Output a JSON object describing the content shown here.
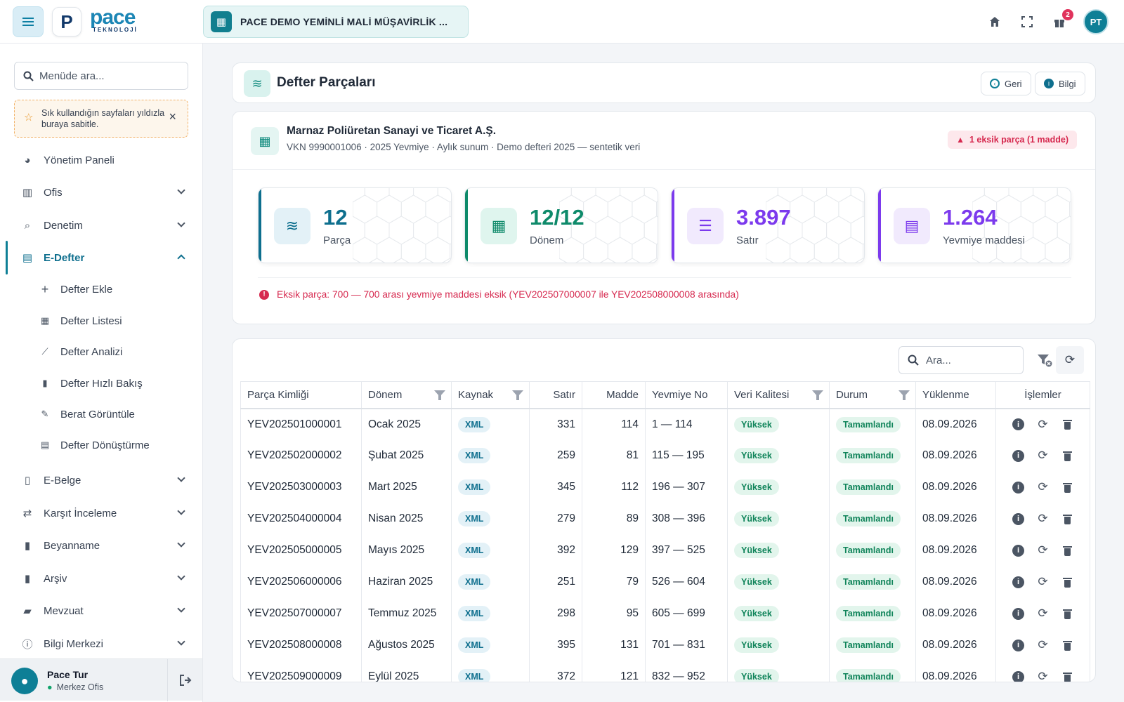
{
  "topbar": {
    "logo_letter": "P",
    "logo_name": "pace",
    "logo_sub": "TEKNOLOJİ",
    "firm_name": "PACE DEMO YEMİNLİ MALİ MÜŞAVİRLİK ...",
    "notification_count": "2",
    "user_initials": "PT",
    "icons": [
      "home-icon",
      "fullscreen-icon",
      "gift-icon"
    ]
  },
  "sidebar": {
    "search_placeholder": "Menüde ara...",
    "fav_hint": "Sık kullandığın sayfaları yıldızla buraya sabitle.",
    "items": [
      {
        "label": "Yönetim Paneli",
        "icon": "dashboard-icon"
      },
      {
        "label": "Ofis",
        "icon": "building-icon"
      },
      {
        "label": "Denetim",
        "icon": "audit-search-icon"
      },
      {
        "label": "E-Defter",
        "icon": "book-icon"
      },
      {
        "label": "E-Belge",
        "icon": "document-icon"
      },
      {
        "label": "Karşıt İnceleme",
        "icon": "swap-icon"
      },
      {
        "label": "Beyanname",
        "icon": "file-icon"
      },
      {
        "label": "Arşiv",
        "icon": "archive-icon"
      },
      {
        "label": "Mevzuat",
        "icon": "folder-icon"
      },
      {
        "label": "Bilgi Merkezi",
        "icon": "info-icon"
      }
    ],
    "sub_items": [
      {
        "label": "Defter Ekle",
        "icon": "plus-icon"
      },
      {
        "label": "Defter Listesi",
        "icon": "table-icon"
      },
      {
        "label": "Defter Analizi",
        "icon": "chart-line-icon"
      },
      {
        "label": "Defter Hızlı Bakış",
        "icon": "file-icon"
      },
      {
        "label": "Berat Görüntüle",
        "icon": "file-edit-icon"
      },
      {
        "label": "Defter Dönüştürme",
        "icon": "book-icon"
      }
    ],
    "user": {
      "name": "Pace Tur",
      "office": "Merkez Ofis"
    }
  },
  "header": {
    "title": "Defter Parçaları",
    "back_label": "Geri",
    "info_label": "Bilgi"
  },
  "summary": {
    "company": "Marnaz Poliüretan Sanayi ve Ticaret A.Ş.",
    "meta": "VKN 9990001006 · 2025 Yevmiye · Aylık sunum · Demo defteri 2025 — sentetik veri",
    "missing_badge": "1 eksik parça (1 madde)",
    "missing_line": "Eksik parça: 700 — 700 arası yevmiye maddesi eksik (YEV202507000007 ile YEV202508000008 arasında)",
    "stats": [
      {
        "value": "12",
        "label": "Parça",
        "color": "#0e6f8e",
        "bg": "#e3f1f7",
        "icon": "layers-icon"
      },
      {
        "value": "12/12",
        "label": "Dönem",
        "color": "#0e8a6a",
        "bg": "#dff5ee",
        "icon": "calendar-icon"
      },
      {
        "value": "3.897",
        "label": "Satır",
        "color": "#7c3aed",
        "bg": "#f1eafd",
        "icon": "list-numbered-icon"
      },
      {
        "value": "1.264",
        "label": "Yevmiye maddesi",
        "color": "#7c3aed",
        "bg": "#f1eafd",
        "icon": "receipt-icon"
      }
    ]
  },
  "table": {
    "search_placeholder": "Ara...",
    "columns": [
      "Parça Kimliği",
      "Dönem",
      "Kaynak",
      "Satır",
      "Madde",
      "Yevmiye No",
      "Veri Kalitesi",
      "Durum",
      "Yüklenme",
      "İşlemler"
    ],
    "rows": [
      {
        "id": "YEV202501000001",
        "donem": "Ocak 2025",
        "kaynak": "XML",
        "satir": "331",
        "madde": "114",
        "yevmiye": "1 — 114",
        "kalite": "Yüksek",
        "durum": "Tamamlandı",
        "yuklenme": "08.09.2026"
      },
      {
        "id": "YEV202502000002",
        "donem": "Şubat 2025",
        "kaynak": "XML",
        "satir": "259",
        "madde": "81",
        "yevmiye": "115 — 195",
        "kalite": "Yüksek",
        "durum": "Tamamlandı",
        "yuklenme": "08.09.2026"
      },
      {
        "id": "YEV202503000003",
        "donem": "Mart 2025",
        "kaynak": "XML",
        "satir": "345",
        "madde": "112",
        "yevmiye": "196 — 307",
        "kalite": "Yüksek",
        "durum": "Tamamlandı",
        "yuklenme": "08.09.2026"
      },
      {
        "id": "YEV202504000004",
        "donem": "Nisan 2025",
        "kaynak": "XML",
        "satir": "279",
        "madde": "89",
        "yevmiye": "308 — 396",
        "kalite": "Yüksek",
        "durum": "Tamamlandı",
        "yuklenme": "08.09.2026"
      },
      {
        "id": "YEV202505000005",
        "donem": "Mayıs 2025",
        "kaynak": "XML",
        "satir": "392",
        "madde": "129",
        "yevmiye": "397 — 525",
        "kalite": "Yüksek",
        "durum": "Tamamlandı",
        "yuklenme": "08.09.2026"
      },
      {
        "id": "YEV202506000006",
        "donem": "Haziran 2025",
        "kaynak": "XML",
        "satir": "251",
        "madde": "79",
        "yevmiye": "526 — 604",
        "kalite": "Yüksek",
        "durum": "Tamamlandı",
        "yuklenme": "08.09.2026"
      },
      {
        "id": "YEV202507000007",
        "donem": "Temmuz 2025",
        "kaynak": "XML",
        "satir": "298",
        "madde": "95",
        "yevmiye": "605 — 699",
        "kalite": "Yüksek",
        "durum": "Tamamlandı",
        "yuklenme": "08.09.2026"
      },
      {
        "id": "YEV202508000008",
        "donem": "Ağustos 2025",
        "kaynak": "XML",
        "satir": "395",
        "madde": "131",
        "yevmiye": "701 — 831",
        "kalite": "Yüksek",
        "durum": "Tamamlandı",
        "yuklenme": "08.09.2026"
      },
      {
        "id": "YEV202509000009",
        "donem": "Eylül 2025",
        "kaynak": "XML",
        "satir": "372",
        "madde": "121",
        "yevmiye": "832 — 952",
        "kalite": "Yüksek",
        "durum": "Tamamlandı",
        "yuklenme": "08.09.2026"
      }
    ]
  }
}
